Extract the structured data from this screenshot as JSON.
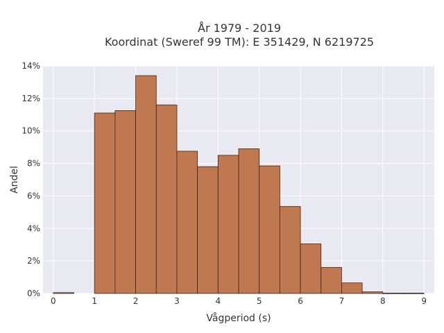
{
  "chart_data": {
    "type": "bar",
    "title_lines": [
      "År 1979 - 2019",
      "Koordinat (Sweref 99 TM): E 351429, N 6219725"
    ],
    "xlabel": "Vågperiod (s)",
    "ylabel": "Andel",
    "xlim": [
      -0.25,
      9.25
    ],
    "ylim": [
      0,
      14
    ],
    "x_ticks": [
      0,
      1,
      2,
      3,
      4,
      5,
      6,
      7,
      8,
      9
    ],
    "y_ticks": [
      0,
      2,
      4,
      6,
      8,
      10,
      12,
      14
    ],
    "y_tick_suffix": "%",
    "grid": true,
    "bar_color": "#c07851",
    "bar_edge_color": "#3a2418",
    "bins": [
      {
        "start": 0.0,
        "end": 0.5,
        "value": 0.05
      },
      {
        "start": 0.5,
        "end": 1.0,
        "value": 0.0
      },
      {
        "start": 1.0,
        "end": 1.5,
        "value": 11.1
      },
      {
        "start": 1.5,
        "end": 2.0,
        "value": 11.25
      },
      {
        "start": 2.0,
        "end": 2.5,
        "value": 13.4
      },
      {
        "start": 2.5,
        "end": 3.0,
        "value": 11.6
      },
      {
        "start": 3.0,
        "end": 3.5,
        "value": 8.75
      },
      {
        "start": 3.5,
        "end": 4.0,
        "value": 7.8
      },
      {
        "start": 4.0,
        "end": 4.5,
        "value": 8.5
      },
      {
        "start": 4.5,
        "end": 5.0,
        "value": 8.9
      },
      {
        "start": 5.0,
        "end": 5.5,
        "value": 7.85
      },
      {
        "start": 5.5,
        "end": 6.0,
        "value": 5.35
      },
      {
        "start": 6.0,
        "end": 6.5,
        "value": 3.05
      },
      {
        "start": 6.5,
        "end": 7.0,
        "value": 1.6
      },
      {
        "start": 7.0,
        "end": 7.5,
        "value": 0.65
      },
      {
        "start": 7.5,
        "end": 8.0,
        "value": 0.1
      },
      {
        "start": 8.0,
        "end": 8.5,
        "value": 0.02
      },
      {
        "start": 8.5,
        "end": 9.0,
        "value": 0.02
      }
    ]
  }
}
